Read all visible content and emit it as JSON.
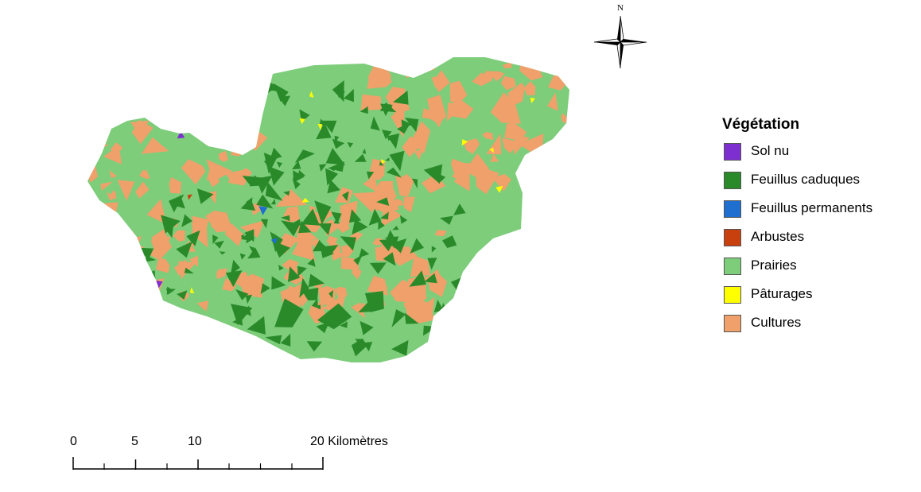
{
  "map": {
    "colors": {
      "prairies": "#7dcd7b",
      "cultures": "#f0a06a",
      "feuillus_caduques": "#2a8a2a",
      "paturages": "#ffff00",
      "sol_nu": "#7e2fd0",
      "feuillus_permanents": "#1e6fd0",
      "arbustes": "#c8400e"
    }
  },
  "north_arrow": {
    "label": "N",
    "icon": "compass-rose-icon"
  },
  "legend": {
    "title": "Végétation",
    "items": [
      {
        "label": "Sol nu",
        "color": "#7e2fd0"
      },
      {
        "label": "Feuillus caduques",
        "color": "#2a8a2a"
      },
      {
        "label": "Feuillus permanents",
        "color": "#1e6fd0"
      },
      {
        "label": "Arbustes",
        "color": "#c8400e"
      },
      {
        "label": "Prairies",
        "color": "#7dcd7b"
      },
      {
        "label": "Pâturages",
        "color": "#ffff00"
      },
      {
        "label": "Cultures",
        "color": "#f0a06a"
      }
    ]
  },
  "scale_bar": {
    "labels": [
      "0",
      "5",
      "10",
      "20 Kilomètres"
    ]
  }
}
